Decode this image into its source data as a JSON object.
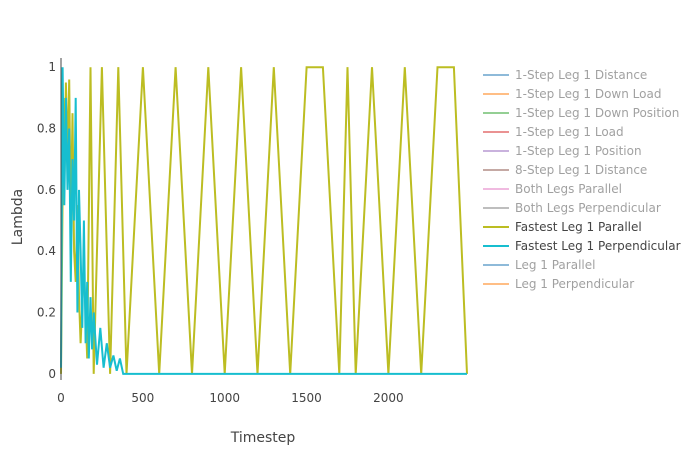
{
  "chart_data": {
    "type": "line",
    "xlabel": "Timestep",
    "ylabel": "Lambda",
    "xlim": [
      0,
      2480
    ],
    "ylim": [
      -0.02,
      1.03
    ],
    "grid": false,
    "legend_position": "right",
    "xticks": [
      0,
      500,
      1000,
      1500,
      2000
    ],
    "xtick_labels": [
      "0",
      "500",
      "1000",
      "1500",
      "2000"
    ],
    "yticks": [
      0,
      0.2,
      0.4,
      0.6,
      0.8,
      1
    ],
    "ytick_labels": [
      "0",
      "0.2",
      "0.4",
      "0.6",
      "0.8",
      "1"
    ],
    "series": [
      {
        "name": "1-Step Leg 1 Distance",
        "color": "#1f77b4",
        "hidden": true
      },
      {
        "name": "1-Step Leg 1 Down Load",
        "color": "#ff7f0e",
        "hidden": true
      },
      {
        "name": "1-Step Leg 1 Down Position",
        "color": "#2ca02c",
        "hidden": true
      },
      {
        "name": "1-Step Leg 1 Load",
        "color": "#d62728",
        "hidden": true
      },
      {
        "name": "1-Step Leg 1 Position",
        "color": "#9467bd",
        "hidden": true
      },
      {
        "name": "8-Step Leg 1 Distance",
        "color": "#8c564b",
        "hidden": true
      },
      {
        "name": "Both Legs Parallel",
        "color": "#e377c2",
        "hidden": true
      },
      {
        "name": "Both Legs Perpendicular",
        "color": "#7f7f7f",
        "hidden": true
      },
      {
        "name": "Fastest Leg 1 Parallel",
        "color": "#bcbd22",
        "hidden": false,
        "x": [
          0,
          15,
          20,
          30,
          40,
          50,
          60,
          70,
          80,
          90,
          100,
          110,
          120,
          140,
          160,
          180,
          200,
          250,
          300,
          350,
          400,
          500,
          600,
          700,
          800,
          900,
          1000,
          1100,
          1200,
          1300,
          1400,
          1500,
          1550,
          1600,
          1700,
          1750,
          1800,
          1900,
          2000,
          2100,
          2200,
          2300,
          2350,
          2400,
          2480
        ],
        "y": [
          0,
          0.9,
          0.6,
          0.95,
          0.7,
          0.96,
          0.5,
          0.85,
          0.4,
          0.3,
          0.55,
          0.25,
          0.1,
          0.35,
          0.05,
          1,
          0,
          1,
          0,
          1,
          0,
          1,
          0,
          1,
          0,
          1,
          0,
          1,
          0,
          1,
          0,
          1,
          1,
          1,
          0,
          1,
          0,
          1,
          0,
          1,
          0,
          1,
          1,
          1,
          0
        ]
      },
      {
        "name": "Fastest Leg 1 Perpendicular",
        "color": "#17becf",
        "hidden": false,
        "x": [
          0,
          10,
          20,
          30,
          40,
          50,
          60,
          70,
          80,
          90,
          100,
          110,
          120,
          130,
          140,
          150,
          160,
          170,
          180,
          190,
          200,
          220,
          240,
          260,
          280,
          300,
          320,
          340,
          360,
          380,
          400,
          2480
        ],
        "y": [
          0.02,
          1,
          0.55,
          0.9,
          0.6,
          0.8,
          0.3,
          0.7,
          0.5,
          0.9,
          0.2,
          0.6,
          0.4,
          0.15,
          0.5,
          0.1,
          0.3,
          0.05,
          0.25,
          0.08,
          0.2,
          0.03,
          0.15,
          0.02,
          0.1,
          0.02,
          0.06,
          0.01,
          0.05,
          0,
          0,
          0
        ]
      },
      {
        "name": "Leg 1 Parallel",
        "color": "#1f77b4",
        "hidden": true
      },
      {
        "name": "Leg 1 Perpendicular",
        "color": "#ff7f0e",
        "hidden": true
      }
    ]
  }
}
